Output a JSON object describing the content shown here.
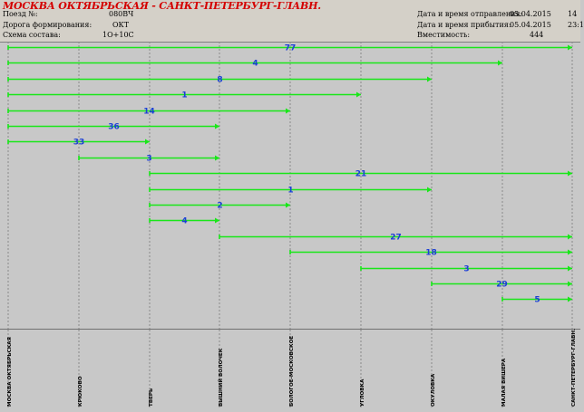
{
  "header": {
    "route_title": "МОСКВА ОКТЯБРЬСКАЯ - САНКТ-ПЕТЕРБУРГ-ГЛАВН.",
    "train_label": "Поезд №:",
    "train_value": "080ВЧ",
    "road_label": "Дорога формирования:",
    "road_value": "ОКТ",
    "scheme_label": "Схема состава:",
    "scheme_value": "1О+10С",
    "departure_label": "Дата и время отправления:",
    "departure_date": "05.04.2015",
    "departure_time": "14",
    "arrival_label": "Дата и время прибытия:",
    "arrival_date": "05.04.2015",
    "arrival_time": "23:1",
    "capacity_label": "Вместимость:",
    "capacity_value": "444"
  },
  "stations": [
    "МОСКВА ОКТЯБРЬСКАЯ",
    "КРЮКОВО",
    "ТВЕРЬ",
    "ВЫШНИЙ ВОЛОЧЕК",
    "БОЛОГОЕ-МОСКОВСКОЕ",
    "УГЛОВКА",
    "ОКУЛОВКА",
    "МАЛАЯ ВИШЕРА",
    "САНКТ-ПЕТЕРБУРГ-ГЛАВН."
  ],
  "segments": [
    {
      "from": 0,
      "to": 8,
      "count": "77"
    },
    {
      "from": 0,
      "to": 7,
      "count": "4"
    },
    {
      "from": 0,
      "to": 6,
      "count": "8"
    },
    {
      "from": 0,
      "to": 5,
      "count": "1"
    },
    {
      "from": 0,
      "to": 4,
      "count": "14"
    },
    {
      "from": 0,
      "to": 3,
      "count": "36"
    },
    {
      "from": 0,
      "to": 2,
      "count": "33"
    },
    {
      "from": 1,
      "to": 3,
      "count": "3"
    },
    {
      "from": 2,
      "to": 8,
      "count": "21"
    },
    {
      "from": 2,
      "to": 6,
      "count": "1"
    },
    {
      "from": 2,
      "to": 4,
      "count": "2"
    },
    {
      "from": 2,
      "to": 3,
      "count": "4"
    },
    {
      "from": 3,
      "to": 8,
      "count": "27"
    },
    {
      "from": 4,
      "to": 8,
      "count": "18"
    },
    {
      "from": 5,
      "to": 8,
      "count": "3"
    },
    {
      "from": 6,
      "to": 8,
      "count": "29"
    },
    {
      "from": 7,
      "to": 8,
      "count": "5"
    }
  ],
  "colors": {
    "segment_line": "#19e619",
    "count_text": "#1a3fd6",
    "route_title": "#d40000",
    "grid_line": "#8a8a8a"
  }
}
